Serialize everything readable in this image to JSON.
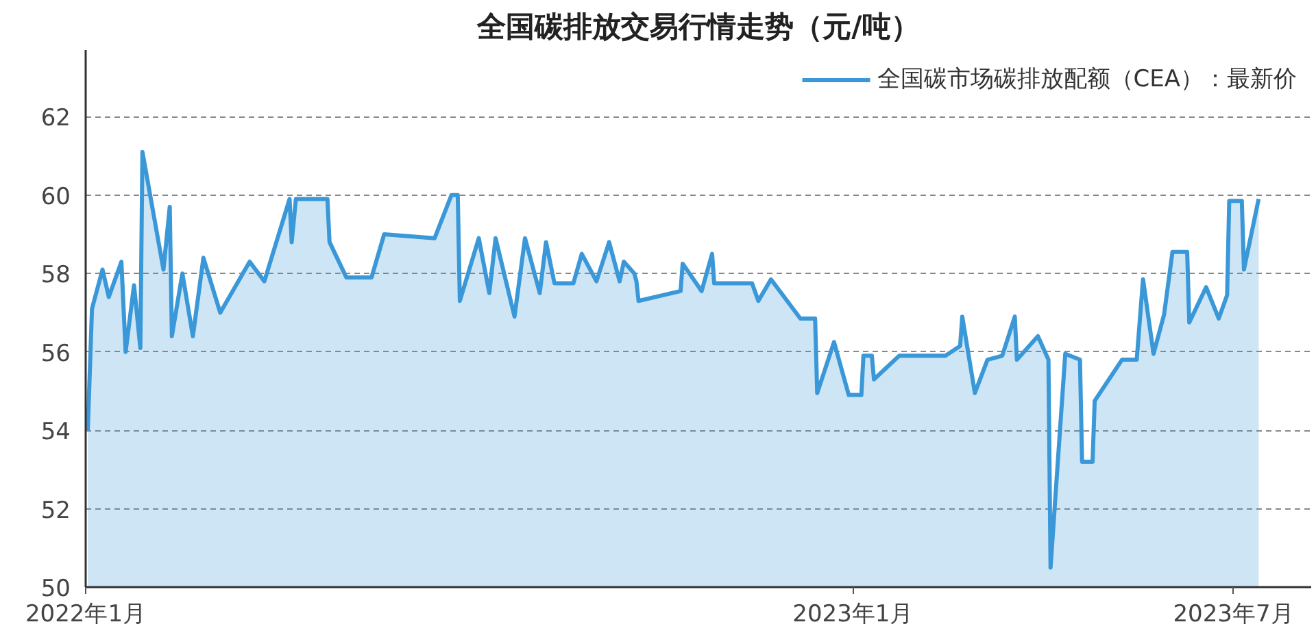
{
  "chart_data": {
    "type": "area",
    "title": "全国碳排放交易行情走势（元/吨）",
    "x": [
      "2022-01-02",
      "2022-01-04",
      "2022-01-09",
      "2022-01-12",
      "2022-01-18",
      "2022-01-20",
      "2022-01-24",
      "2022-01-27",
      "2022-01-28",
      "2022-02-07",
      "2022-02-10",
      "2022-02-11",
      "2022-02-16",
      "2022-02-21",
      "2022-02-26",
      "2022-03-06",
      "2022-03-20",
      "2022-03-27",
      "2022-04-08",
      "2022-04-09",
      "2022-04-11",
      "2022-04-26",
      "2022-04-27",
      "2022-05-05",
      "2022-05-17",
      "2022-05-23",
      "2022-06-16",
      "2022-06-24",
      "2022-06-27",
      "2022-06-28",
      "2022-07-07",
      "2022-07-12",
      "2022-07-15",
      "2022-07-24",
      "2022-07-29",
      "2022-08-05",
      "2022-08-08",
      "2022-08-12",
      "2022-08-21",
      "2022-08-25",
      "2022-09-01",
      "2022-09-07",
      "2022-09-12",
      "2022-09-14",
      "2022-09-19",
      "2022-09-20",
      "2022-09-21",
      "2022-10-11",
      "2022-10-12",
      "2022-10-21",
      "2022-10-26",
      "2022-10-27",
      "2022-11-14",
      "2022-11-17",
      "2022-11-23",
      "2022-12-07",
      "2022-12-14",
      "2022-12-15",
      "2022-12-23",
      "2022-12-30",
      "2023-01-05",
      "2023-01-06",
      "2023-01-10",
      "2023-01-11",
      "2023-01-17",
      "2023-01-23",
      "2023-02-14",
      "2023-02-21",
      "2023-02-22",
      "2023-02-28",
      "2023-03-06",
      "2023-03-13",
      "2023-03-19",
      "2023-03-20",
      "2023-03-30",
      "2023-04-04",
      "2023-04-05",
      "2023-04-12",
      "2023-04-19",
      "2023-04-20",
      "2023-04-25",
      "2023-04-26",
      "2023-05-09",
      "2023-05-16",
      "2023-05-19",
      "2023-05-24",
      "2023-05-29",
      "2023-06-02",
      "2023-06-09",
      "2023-06-10",
      "2023-06-18",
      "2023-06-24",
      "2023-06-28",
      "2023-06-29",
      "2023-07-05",
      "2023-07-06",
      "2023-07-13"
    ],
    "series": [
      {
        "name": "全国碳市场碳排放配额（CEA）：最新价",
        "color": "#3a98d8",
        "values": [
          54.0,
          57.1,
          58.1,
          57.4,
          58.3,
          56.0,
          57.7,
          56.1,
          61.1,
          58.1,
          59.7,
          56.4,
          58.0,
          56.4,
          58.4,
          57.0,
          58.3,
          57.8,
          59.9,
          58.8,
          59.9,
          59.9,
          58.8,
          57.9,
          57.9,
          59.0,
          58.9,
          60.0,
          60.0,
          57.3,
          58.9,
          57.5,
          58.9,
          56.9,
          58.9,
          57.5,
          58.8,
          57.75,
          57.75,
          58.5,
          57.8,
          58.8,
          57.8,
          58.3,
          58.0,
          57.8,
          57.3,
          57.55,
          58.25,
          57.55,
          58.5,
          57.75,
          57.75,
          57.3,
          57.85,
          56.85,
          56.85,
          54.95,
          56.25,
          54.9,
          54.9,
          55.9,
          55.9,
          55.3,
          55.6,
          55.9,
          55.9,
          56.15,
          56.9,
          54.95,
          55.8,
          55.9,
          56.9,
          55.8,
          56.4,
          55.8,
          50.5,
          55.95,
          55.8,
          53.2,
          53.2,
          54.75,
          55.8,
          55.8,
          57.85,
          55.95,
          56.95,
          58.55,
          58.55,
          56.75,
          57.65,
          56.85,
          57.45,
          59.85,
          59.85,
          58.1,
          59.9
        ]
      }
    ],
    "xlim": [
      "2022-01-01",
      "2023-08-07"
    ],
    "xticks": [
      {
        "value": "2022-01-01",
        "label": "2022年1月"
      },
      {
        "value": "2023-01-01",
        "label": "2023年1月"
      },
      {
        "value": "2023-07-01",
        "label": "2023年7月"
      }
    ],
    "ylim": [
      50,
      63.7
    ],
    "yticks": [
      50,
      52,
      54,
      56,
      58,
      60,
      62
    ],
    "grid": "y",
    "legend": "top right"
  }
}
